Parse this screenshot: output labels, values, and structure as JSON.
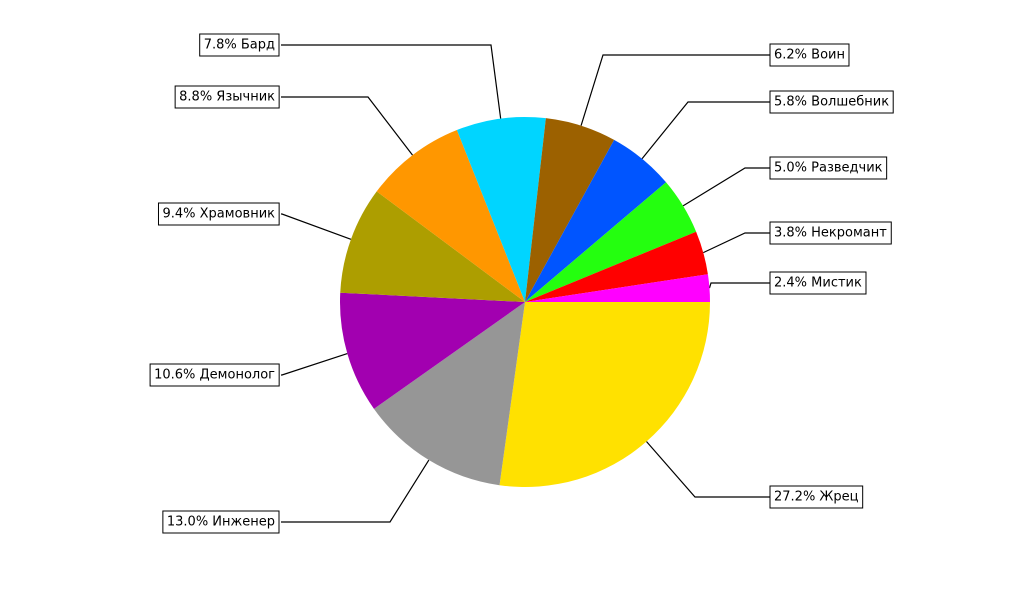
{
  "chart_data": {
    "type": "pie",
    "start_angle": 0,
    "direction": "clockwise",
    "values": [
      27.2,
      13.0,
      10.6,
      9.4,
      8.8,
      7.8,
      6.2,
      5.8,
      5.0,
      3.8,
      2.4
    ],
    "value_labels": [
      "27.2% Жрец",
      "13.0% Инженер",
      "10.6% Демонолог",
      "9.4% Храмовник",
      "8.8% Язычник",
      "7.8% Бард",
      "6.2% Воин",
      "5.8% Волшебник",
      "5.0% Разведчик",
      "3.8% Некромант",
      "2.4% Мистик"
    ],
    "colors": [
      "#ffe100",
      "#969696",
      "#a200b0",
      "#ad9e00",
      "#ff9700",
      "#00d5ff",
      "#9c6100",
      "#0055ff",
      "#24ff0f",
      "#ff0000",
      "#ff00ff"
    ]
  }
}
